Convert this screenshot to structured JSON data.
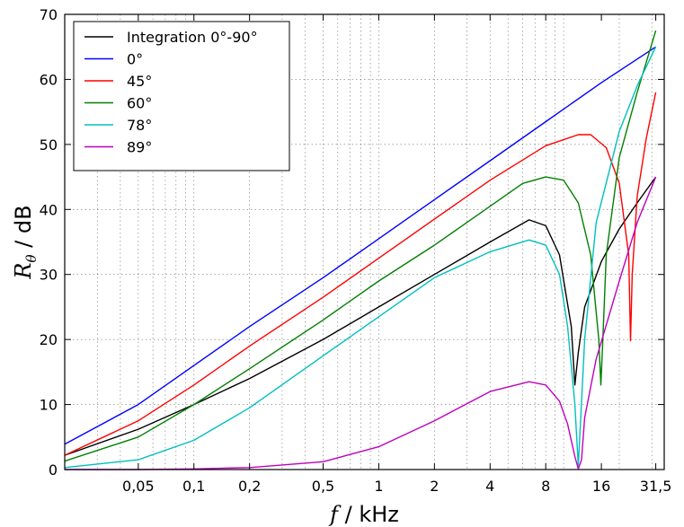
{
  "chart_data": {
    "type": "line",
    "xscale": "log",
    "xlabel_var": "f",
    "xlabel_unit": " / kHz",
    "ylabel_var": "R",
    "ylabel_sub": "θ",
    "ylabel_unit": " / dB",
    "xlim": [
      0.02,
      35
    ],
    "ylim": [
      0,
      70
    ],
    "x_ticks": [
      0.05,
      0.1,
      0.2,
      0.5,
      1,
      2,
      4,
      8,
      16,
      31.5
    ],
    "x_tick_labels": [
      "0,05",
      "0,1",
      "0,2",
      "0,5",
      "1",
      "2",
      "4",
      "8",
      "16",
      "31,5"
    ],
    "y_ticks": [
      0,
      10,
      20,
      30,
      40,
      50,
      60,
      70
    ],
    "y_tick_labels": [
      "0",
      "10",
      "20",
      "30",
      "40",
      "50",
      "60",
      "70"
    ],
    "grid": true,
    "legend_position": "top-left",
    "series": [
      {
        "name": "Integration 0°-90°",
        "color": "#000000",
        "x": [
          0.02,
          0.05,
          0.1,
          0.2,
          0.5,
          1,
          2,
          4,
          6.5,
          8,
          9.5,
          11,
          11.5,
          12,
          13,
          16,
          20,
          25,
          31.5
        ],
        "y": [
          2.2,
          6.2,
          10,
          14,
          20,
          25,
          30,
          35,
          38.4,
          37.5,
          33,
          22,
          13,
          18,
          25,
          32,
          37,
          41,
          45
        ]
      },
      {
        "name": "0°",
        "color": "#0000ff",
        "x": [
          0.02,
          0.05,
          0.1,
          0.2,
          0.5,
          1,
          2,
          4,
          8,
          16,
          31.5
        ],
        "y": [
          3.9,
          10,
          16,
          22,
          29.5,
          35.5,
          41.5,
          47.5,
          53.5,
          59.5,
          65
        ]
      },
      {
        "name": "45°",
        "color": "#ff0000",
        "x": [
          0.02,
          0.05,
          0.1,
          0.2,
          0.5,
          1,
          2,
          4,
          8,
          12,
          14,
          17,
          20,
          22.5,
          23,
          23.5,
          25,
          28,
          31.5
        ],
        "y": [
          2.2,
          7.5,
          13,
          19,
          26.5,
          32.5,
          38.5,
          44.5,
          49.8,
          51.5,
          51.5,
          49.5,
          44,
          33,
          19.8,
          30,
          42,
          51,
          58
        ]
      },
      {
        "name": "60°",
        "color": "#008000",
        "x": [
          0.02,
          0.05,
          0.1,
          0.2,
          0.5,
          1,
          2,
          4,
          6,
          8,
          10,
          12,
          14,
          15.5,
          15.9,
          16.3,
          17,
          20,
          25,
          31.5
        ],
        "y": [
          1.3,
          5,
          10,
          15.5,
          23,
          29,
          34.5,
          40.5,
          44,
          45,
          44.5,
          41,
          33,
          20,
          13,
          20,
          33,
          48,
          58,
          67.5
        ]
      },
      {
        "name": "78°",
        "color": "#00bfbf",
        "x": [
          0.02,
          0.05,
          0.1,
          0.2,
          0.5,
          1,
          2,
          4,
          6.5,
          8,
          9.5,
          10.5,
          11.5,
          12,
          13,
          15,
          20,
          25,
          31.5
        ],
        "y": [
          0.3,
          1.5,
          4.5,
          9.5,
          17.5,
          23.5,
          29.5,
          33.5,
          35.3,
          34.5,
          30,
          22,
          10,
          0.5,
          20,
          38,
          52,
          59,
          65
        ]
      },
      {
        "name": "89°",
        "color": "#bf00bf",
        "x": [
          0.02,
          0.05,
          0.1,
          0.2,
          0.5,
          1,
          2,
          4,
          6.5,
          8,
          9.5,
          10.5,
          11.5,
          12,
          12.5,
          13,
          15,
          20,
          25,
          31.5
        ],
        "y": [
          0,
          0,
          0.1,
          0.3,
          1.2,
          3.5,
          7.5,
          12,
          13.5,
          13,
          10.5,
          7,
          2,
          0.1,
          1.5,
          8,
          17,
          29,
          38,
          45
        ]
      }
    ]
  }
}
